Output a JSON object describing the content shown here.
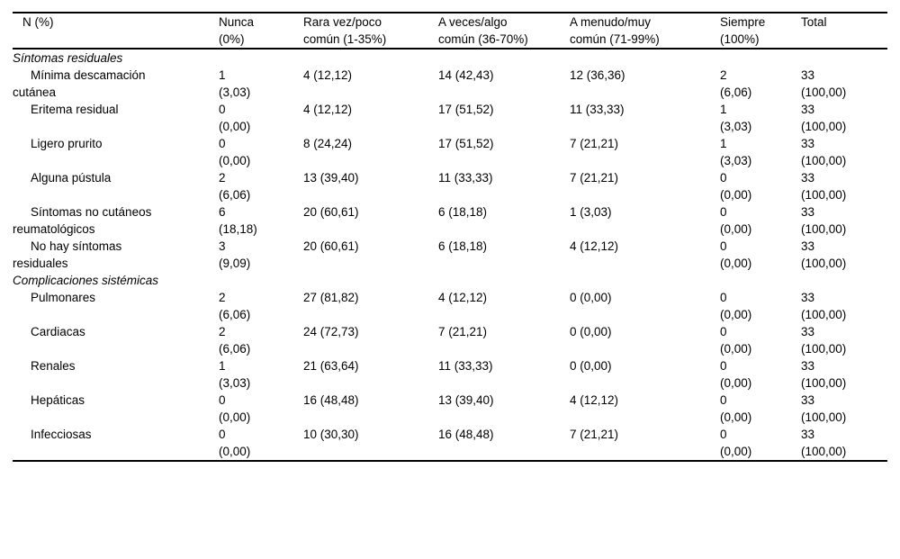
{
  "table": {
    "columns": [
      {
        "label": "N (%)"
      },
      {
        "label": "Nunca\n(0%)"
      },
      {
        "label": "Rara vez/poco\ncomún (1-35%)"
      },
      {
        "label": "A veces/algo\ncomún (36-70%)"
      },
      {
        "label": "A menudo/muy\ncomún (71-99%)"
      },
      {
        "label": "Siempre\n(100%)"
      },
      {
        "label": "Total"
      }
    ],
    "sections": [
      {
        "header": "Síntomas residuales",
        "rows": [
          {
            "label": "Mínima descamación\ncutánea",
            "cells": [
              "1\n(3,03)",
              "4 (12,12)",
              "14 (42,43)",
              "12 (36,36)",
              "2\n(6,06)",
              "33\n(100,00)"
            ]
          },
          {
            "label": "Eritema residual",
            "cells": [
              "0\n(0,00)",
              "4 (12,12)",
              "17 (51,52)",
              "11 (33,33)",
              "1\n(3,03)",
              "33\n(100,00)"
            ]
          },
          {
            "label": "Ligero prurito",
            "cells": [
              "0\n(0,00)",
              "8 (24,24)",
              "17 (51,52)",
              "7 (21,21)",
              "1\n(3,03)",
              "33\n(100,00)"
            ]
          },
          {
            "label": "Alguna pústula",
            "cells": [
              "2\n(6,06)",
              "13 (39,40)",
              "11 (33,33)",
              "7 (21,21)",
              "0\n(0,00)",
              "33\n(100,00)"
            ]
          },
          {
            "label": "Síntomas no cutáneos\nreumatológicos",
            "cells": [
              "6\n(18,18)",
              "20 (60,61)",
              "6 (18,18)",
              "1 (3,03)",
              "0\n(0,00)",
              "33\n(100,00)"
            ]
          },
          {
            "label": "No hay síntomas\nresiduales",
            "cells": [
              "3\n(9,09)",
              "20 (60,61)",
              "6 (18,18)",
              "4 (12,12)",
              "0\n(0,00)",
              "33\n(100,00)"
            ]
          }
        ]
      },
      {
        "header": "Complicaciones sistémicas",
        "rows": [
          {
            "label": "Pulmonares",
            "cells": [
              "2\n(6,06)",
              "27 (81,82)",
              "4 (12,12)",
              "0 (0,00)",
              "0\n(0,00)",
              "33\n(100,00)"
            ]
          },
          {
            "label": "Cardiacas",
            "cells": [
              "2\n(6,06)",
              "24 (72,73)",
              "7 (21,21)",
              "0 (0,00)",
              "0\n(0,00)",
              "33\n(100,00)"
            ]
          },
          {
            "label": "Renales",
            "cells": [
              "1\n(3,03)",
              "21 (63,64)",
              "11 (33,33)",
              "0 (0,00)",
              "0\n(0,00)",
              "33\n(100,00)"
            ]
          },
          {
            "label": "Hepáticas",
            "cells": [
              "0\n(0,00)",
              "16 (48,48)",
              "13 (39,40)",
              "4 (12,12)",
              "0\n(0,00)",
              "33\n(100,00)"
            ]
          },
          {
            "label": "Infecciosas",
            "cells": [
              "0\n(0,00)",
              "10 (30,30)",
              "16 (48,48)",
              "7 (21,21)",
              "0\n(0,00)",
              "33\n(100,00)"
            ]
          }
        ]
      }
    ]
  }
}
